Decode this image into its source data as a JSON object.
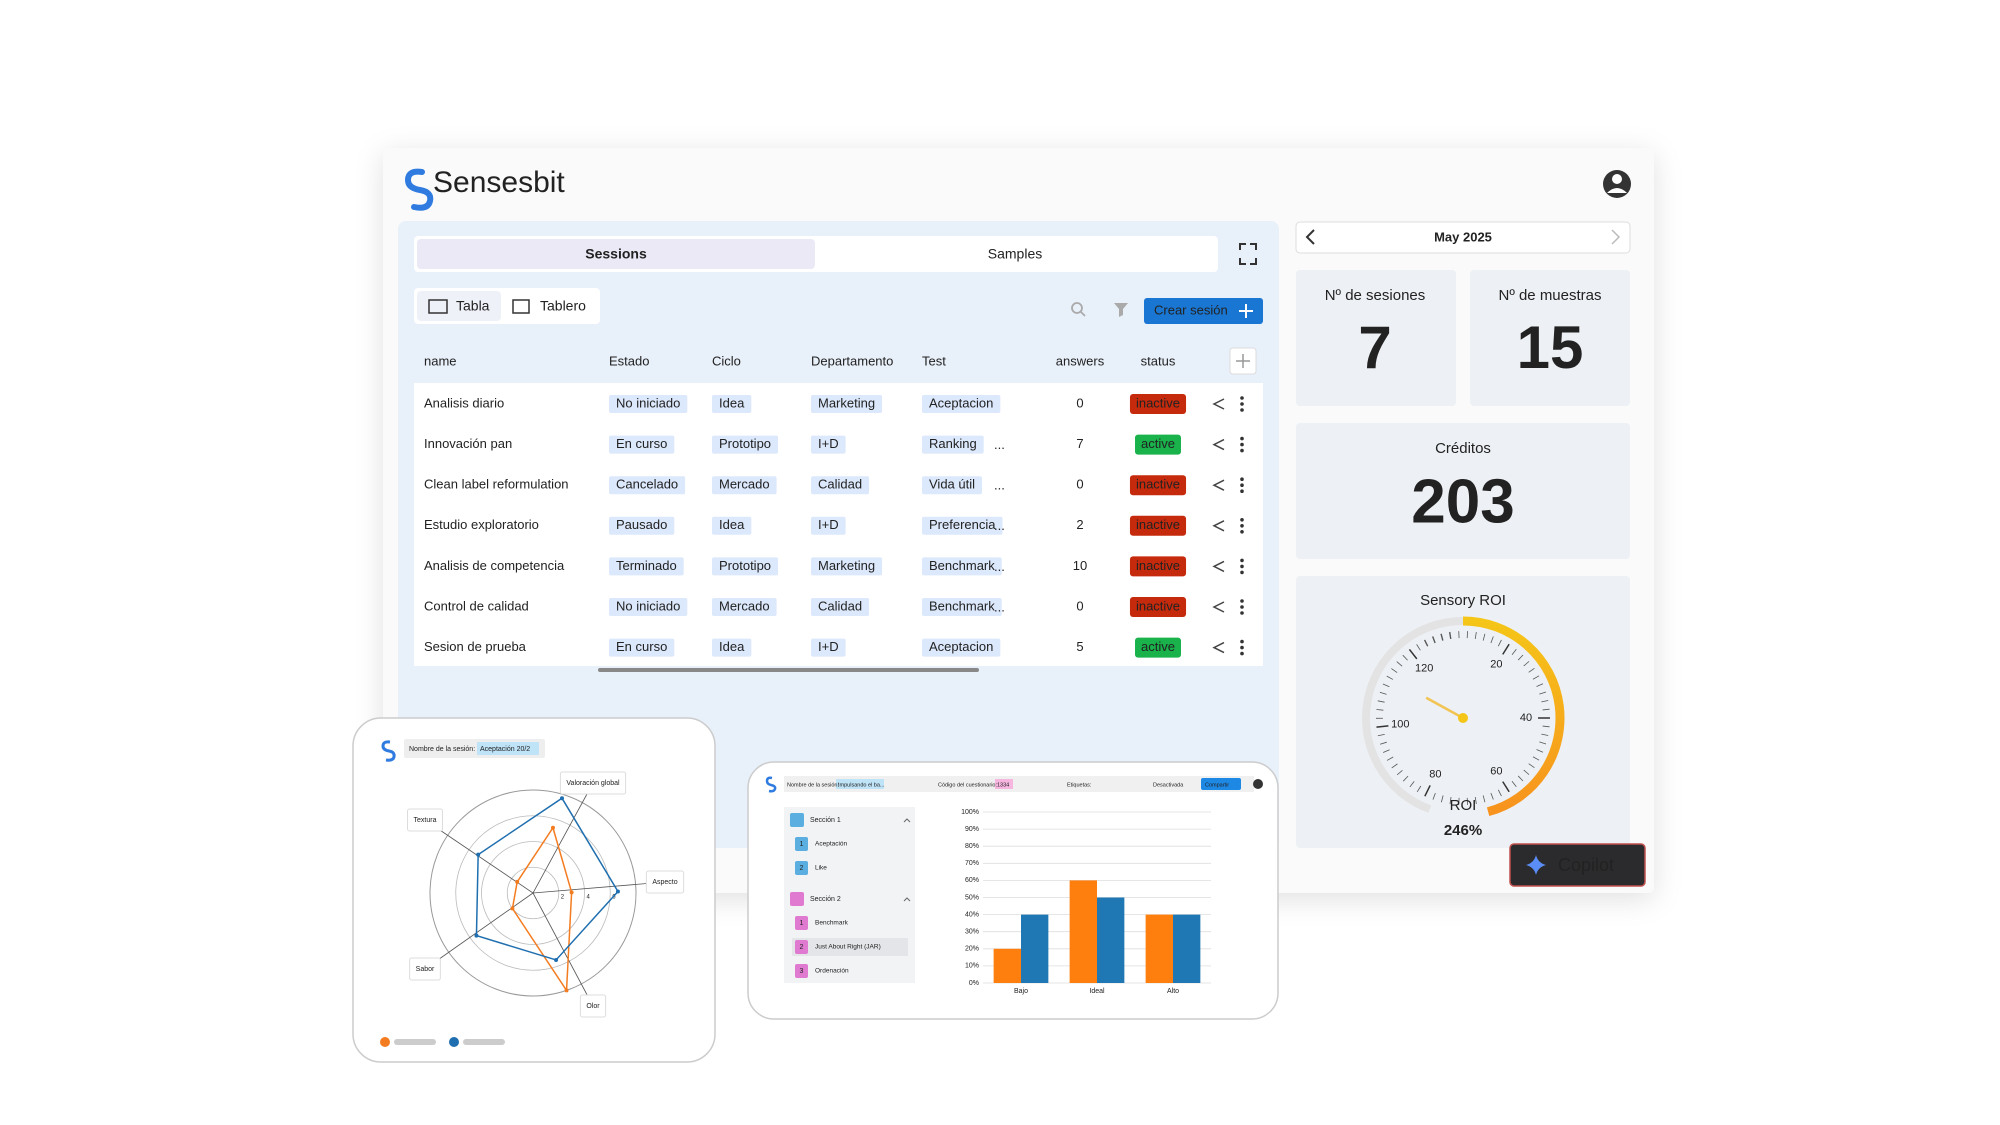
{
  "header": {
    "logo": "Sensesbit"
  },
  "tabs": [
    "Sessions",
    "Samples"
  ],
  "views": [
    "Tabla",
    "Tablero"
  ],
  "create_button": "Crear sesión",
  "table": {
    "columns": [
      "name",
      "Estado",
      "Ciclo",
      "Departamento",
      "Test",
      "answers",
      "status"
    ],
    "rows": [
      [
        "Analisis diario",
        "No iniciado",
        "Idea",
        "Marketing",
        "Aceptacion",
        0,
        "inactive"
      ],
      [
        "Innovación pan",
        "En curso",
        "Prototipo",
        "I+D",
        "Ranking",
        7,
        "active"
      ],
      [
        "Clean label reformulation",
        "Cancelado",
        "Mercado",
        "Calidad",
        "Vida útil",
        0,
        "inactive"
      ],
      [
        "Estudio exploratorio",
        "Pausado",
        "Idea",
        "I+D",
        "Preferencia",
        2,
        "inactive"
      ],
      [
        "Analisis de competencia",
        "Terminado",
        "Prototipo",
        "Marketing",
        "Benchmark",
        10,
        "inactive"
      ],
      [
        "Control de calidad",
        "No iniciado",
        "Mercado",
        "Calidad",
        "Benchmark",
        0,
        "inactive"
      ],
      [
        "Sesion de prueba",
        "En curso",
        "Idea",
        "I+D",
        "Aceptacion",
        5,
        "active"
      ]
    ],
    "more_tests": [
      null,
      "...",
      "...",
      "...",
      "...",
      "...",
      null
    ]
  },
  "calendar": {
    "month": "May 2025"
  },
  "stats": [
    {
      "label": "Nº de sesiones",
      "value": 7
    },
    {
      "label": "Nº de muestras",
      "value": 15
    }
  ],
  "credits": {
    "label": "Créditos",
    "value": 203
  },
  "roi": {
    "title": "Sensory ROI",
    "ticks": [
      20,
      40,
      60,
      80,
      100,
      120
    ],
    "pointer": 112,
    "label": "ROI",
    "value": "246%"
  },
  "copilot": "Copilot",
  "radar_card": {
    "session_label": "Nombre de la sesión:",
    "session_value": "Aceptación 20/2",
    "chart_data": {
      "type": "radar",
      "categories": [
        "Valoración global",
        "Aspecto",
        "Olor",
        "Sabor",
        "Textura"
      ],
      "rlim": [
        0,
        8
      ],
      "rticks": [
        2,
        4,
        6
      ],
      "series": [
        {
          "color": "#f47c20",
          "values": [
            5.3,
            3.0,
            8.0,
            2.0,
            1.5
          ]
        },
        {
          "color": "#1f6fb0",
          "values": [
            7.7,
            6.6,
            5.5,
            5.5,
            5.2
          ]
        }
      ]
    }
  },
  "bar_card": {
    "header": [
      "Nombre de la sesión:",
      "Impulsando el ba...",
      "Código del cuestionario:",
      "1334",
      "Etiquetas:",
      "Desactivada",
      "Compartir"
    ],
    "sections": [
      {
        "title": "Sección 1",
        "items": [
          {
            "n": 1,
            "label": "Aceptación"
          },
          {
            "n": 2,
            "label": "Like"
          }
        ]
      },
      {
        "title": "Sección 2",
        "items": [
          {
            "n": 1,
            "label": "Benchmark"
          },
          {
            "n": 2,
            "label": "Just About Right (JAR)"
          },
          {
            "n": 3,
            "label": "Ordenación"
          }
        ]
      }
    ],
    "chart_data": {
      "type": "bar",
      "categories": [
        "Bajo",
        "Ideal",
        "Alto"
      ],
      "series": [
        {
          "color": "#ff7f0e",
          "values": [
            20,
            60,
            40
          ]
        },
        {
          "color": "#1f77b4",
          "values": [
            40,
            50,
            40
          ]
        }
      ],
      "ylim": [
        0,
        100
      ],
      "yticks": [
        {
          "value": 0,
          "label": "0%"
        },
        {
          "value": 10,
          "label": "10%"
        },
        {
          "value": 20,
          "label": "20%"
        },
        {
          "value": 30,
          "label": "30%"
        },
        {
          "value": 40,
          "label": "40%"
        },
        {
          "value": 50,
          "label": "50%"
        },
        {
          "value": 60,
          "label": "60%"
        },
        {
          "value": 70,
          "label": "70%"
        },
        {
          "value": 80,
          "label": "80%"
        },
        {
          "value": 90,
          "label": "90%"
        },
        {
          "value": 100,
          "label": "100%"
        }
      ],
      "grid": true
    }
  }
}
